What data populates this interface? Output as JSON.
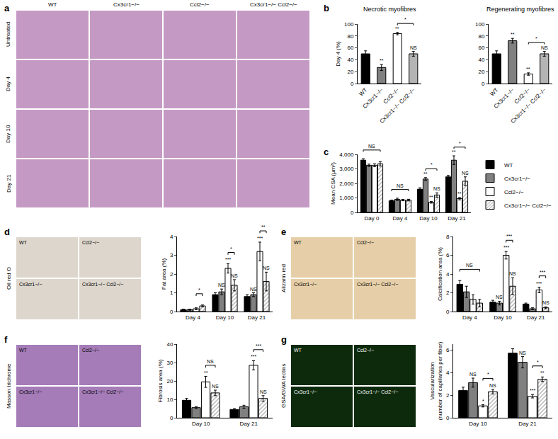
{
  "panel_labels": [
    "a",
    "b",
    "c",
    "d",
    "e",
    "f",
    "g"
  ],
  "histology": [
    {
      "columns": [
        "WT",
        "Cx3cr1−/−",
        "Ccl2−/−",
        "Cx3cr1−/− Ccl2−/−"
      ],
      "rows": [
        "Untreated",
        "Day 4",
        "Day 10",
        "Day 21"
      ],
      "color": "#c49ac4"
    },
    {
      "stain": "Oil red O",
      "cells": [
        "WT",
        "Ccl2−/−",
        "Cx3cr1−/−",
        "Cx3cr1−/− Ccl2−/−"
      ],
      "color": "#ddd6cc"
    },
    {
      "stain": "Alizarin red",
      "cells": [
        "WT",
        "Ccl2−/−",
        "Cx3cr1−/−",
        "Cx3cr1−/− Ccl2−/−"
      ],
      "color": "#e6cfa8"
    },
    {
      "stain": "Masson trichrome",
      "cells": [
        "WT",
        "Ccl2−/−",
        "Cx3cr1−/−",
        "Cx3cr1−/− Ccl2−/−"
      ],
      "color": "#a57cb8"
    },
    {
      "stain": "GSA/GWA lectins",
      "cells": [
        "WT",
        "Ccl2−/−",
        "Cx3cr1−/−",
        "Cx3cr1−/− Ccl2−/−"
      ],
      "color": "#0d2a0d"
    }
  ],
  "chart_data": [
    {
      "type": "bar",
      "title": "Necrotic myofibres",
      "ylabel": "Day 4 (%)",
      "grid": false,
      "categories": [
        "WT",
        "Cx3cr1−/−",
        "Ccl2−/−",
        "Cx3cr1−/− Ccl2−/−"
      ],
      "series": [
        {
          "values": [
            50,
            27,
            84,
            50
          ],
          "errors": [
            5,
            5,
            2,
            4
          ],
          "colors": [
            "#000000",
            "#808080",
            "#ffffff",
            "#b4b4b4"
          ],
          "annotations": [
            null,
            "**",
            "**",
            "NS"
          ]
        }
      ],
      "comparisons": [
        {
          "from": 2,
          "to": 3,
          "label": "*"
        }
      ],
      "ylim": [
        0,
        100
      ],
      "yticks": [
        0,
        20,
        40,
        60,
        80,
        100
      ]
    },
    {
      "type": "bar",
      "title": "Regenerating myofibres",
      "grid": false,
      "categories": [
        "WT",
        "Cx3cr1−/−",
        "Ccl2−/−",
        "Cx3cr1−/− Ccl2−/−"
      ],
      "series": [
        {
          "values": [
            50,
            72,
            16,
            50
          ],
          "errors": [
            5,
            4,
            2,
            4
          ],
          "colors": [
            "#000000",
            "#808080",
            "#ffffff",
            "#b4b4b4"
          ],
          "annotations": [
            null,
            "**",
            "**",
            "NS"
          ]
        }
      ],
      "comparisons": [
        {
          "from": 2,
          "to": 3,
          "label": "*"
        }
      ],
      "ylim": [
        0,
        100
      ],
      "yticks": [
        0,
        20,
        40,
        60,
        80,
        100
      ]
    },
    {
      "type": "bar",
      "ylabel": "Mean CSA (μm²)",
      "grid": false,
      "legend": "right",
      "categories": [
        "Day 0",
        "Day 4",
        "Day 10",
        "Day 21"
      ],
      "series": [
        {
          "name": "WT",
          "color": "#000000",
          "values": [
            3600,
            800,
            1600,
            2450
          ],
          "errors": [
            100,
            50,
            100,
            100
          ]
        },
        {
          "name": "Cx3cr1−/−",
          "color": "#808080",
          "values": [
            3250,
            900,
            2300,
            3600
          ],
          "errors": [
            80,
            80,
            100,
            300
          ],
          "annotations": [
            null,
            null,
            "**",
            "**"
          ]
        },
        {
          "name": "Ccl2−/−",
          "color": "#ffffff",
          "values": [
            3250,
            850,
            700,
            950
          ],
          "errors": [
            100,
            50,
            60,
            80
          ],
          "annotations": [
            null,
            null,
            "**",
            "**"
          ]
        },
        {
          "name": "Cx3cr1−/− Ccl2−/−",
          "color": "#ffffff",
          "marker": "hatch",
          "values": [
            3350,
            850,
            1200,
            2150
          ],
          "errors": [
            150,
            60,
            150,
            300
          ],
          "annotations": [
            null,
            null,
            "NS",
            "NS"
          ]
        }
      ],
      "comparisons": [
        {
          "category": 0,
          "from": 0,
          "to": 3,
          "label": "NS"
        },
        {
          "category": 1,
          "from": 0,
          "to": 3,
          "label": "NS"
        },
        {
          "category": 2,
          "from": 1,
          "to": 3,
          "label": "*"
        },
        {
          "category": 3,
          "from": 1,
          "to": 3,
          "label": "*"
        }
      ],
      "ylim": [
        0,
        4000
      ],
      "yticks": [
        0,
        {
          "value": 1000,
          "label": "1,000"
        },
        {
          "value": 2000,
          "label": "2,000"
        },
        {
          "value": 3000,
          "label": "3,000"
        },
        {
          "value": 4000,
          "label": "4,000"
        }
      ]
    },
    {
      "type": "bar",
      "ylabel": "Fat area (%)",
      "grid": false,
      "categories": [
        "Day 4",
        "Day 10",
        "Day 21"
      ],
      "series": [
        {
          "color": "#000000",
          "values": [
            0.1,
            0.9,
            0.8
          ],
          "errors": [
            0.03,
            0.1,
            0.1
          ]
        },
        {
          "color": "#808080",
          "values": [
            0.1,
            1.05,
            0.9
          ],
          "errors": [
            0.03,
            0.15,
            0.1
          ],
          "annotations": [
            null,
            "NS",
            "NS"
          ]
        },
        {
          "color": "#ffffff",
          "values": [
            0.15,
            2.3,
            3.2
          ],
          "errors": [
            0.05,
            0.25,
            0.5
          ],
          "annotations": [
            null,
            "***",
            "***"
          ]
        },
        {
          "color": "#ffffff",
          "marker": "hatch",
          "values": [
            0.3,
            1.4,
            1.6
          ],
          "errors": [
            0.05,
            0.3,
            0.5
          ],
          "annotations": [
            null,
            "NS",
            "NS"
          ]
        }
      ],
      "comparisons": [
        {
          "category": 0,
          "from": 2,
          "to": 3,
          "label": "*"
        },
        {
          "category": 1,
          "from": 2,
          "to": 3,
          "label": "*"
        },
        {
          "category": 2,
          "from": 2,
          "to": 3,
          "label": "**"
        }
      ],
      "ylim": [
        0,
        4
      ],
      "yticks": [
        0,
        1,
        2,
        3,
        4
      ]
    },
    {
      "type": "bar",
      "ylabel": "Calcification area (%)",
      "grid": false,
      "categories": [
        "Day 4",
        "Day 10",
        "Day 21"
      ],
      "series": [
        {
          "color": "#000000",
          "values": [
            2.9,
            1.0,
            0.8
          ],
          "errors": [
            0.4,
            0.2,
            0.1
          ]
        },
        {
          "color": "#808080",
          "values": [
            2.1,
            0.9,
            0.3
          ],
          "errors": [
            0.6,
            0.2,
            0.1
          ],
          "annotations": [
            null,
            "NS",
            null
          ]
        },
        {
          "color": "#ffffff",
          "values": [
            1.3,
            6.0,
            2.3
          ],
          "errors": [
            0.5,
            0.4,
            0.3
          ],
          "annotations": [
            null,
            "***",
            "***"
          ]
        },
        {
          "color": "#ffffff",
          "marker": "hatch",
          "values": [
            0.9,
            2.7,
            0.4
          ],
          "errors": [
            0.4,
            0.9,
            0.1
          ],
          "annotations": [
            null,
            "NS",
            "NS"
          ]
        }
      ],
      "comparisons": [
        {
          "category": 0,
          "from": 0,
          "to": 3,
          "label": "NS"
        },
        {
          "category": 1,
          "from": 2,
          "to": 3,
          "label": "***"
        },
        {
          "category": 2,
          "from": 2,
          "to": 3,
          "label": "***"
        }
      ],
      "ylim": [
        0,
        8
      ],
      "yticks": [
        0,
        2,
        4,
        6,
        8
      ]
    },
    {
      "type": "bar",
      "ylabel": "Fibrosis area (%)",
      "grid": false,
      "categories": [
        "Day 10",
        "Day 21"
      ],
      "series": [
        {
          "color": "#000000",
          "values": [
            9.5,
            4.5
          ],
          "errors": [
            1,
            0.5
          ]
        },
        {
          "color": "#808080",
          "values": [
            5.5,
            6
          ],
          "errors": [
            0.5,
            0.8
          ]
        },
        {
          "color": "#ffffff",
          "values": [
            19.5,
            28.5
          ],
          "errors": [
            3,
            2.5
          ],
          "annotations": [
            "**",
            "***"
          ]
        },
        {
          "color": "#ffffff",
          "marker": "hatch",
          "values": [
            13.5,
            10.5
          ],
          "errors": [
            1.5,
            1.5
          ],
          "annotations": [
            "NS",
            "NS"
          ]
        }
      ],
      "comparisons": [
        {
          "category": 0,
          "from": 2,
          "to": 3,
          "label": "NS"
        },
        {
          "category": 1,
          "from": 2,
          "to": 3,
          "label": "***"
        }
      ],
      "ylim": [
        0,
        40
      ],
      "yticks": [
        0,
        10,
        20,
        30,
        40
      ]
    },
    {
      "type": "bar",
      "ylabel": "Vascularization\n(number of capillaries per fiber)",
      "grid": false,
      "categories": [
        "Day 10",
        "Day 21"
      ],
      "series": [
        {
          "color": "#000000",
          "values": [
            2.4,
            5.7
          ],
          "errors": [
            0.3,
            0.4
          ]
        },
        {
          "color": "#808080",
          "values": [
            3.1,
            4.9
          ],
          "errors": [
            0.4,
            0.5
          ],
          "annotations": [
            "NS",
            "NS"
          ]
        },
        {
          "color": "#ffffff",
          "values": [
            1.05,
            1.9
          ],
          "errors": [
            0.1,
            0.15
          ],
          "annotations": [
            "*",
            "***"
          ]
        },
        {
          "color": "#ffffff",
          "marker": "hatch",
          "values": [
            2.3,
            3.4
          ],
          "errors": [
            0.2,
            0.2
          ],
          "annotations": [
            "NS",
            "**"
          ]
        }
      ],
      "comparisons": [
        {
          "category": 0,
          "from": 2,
          "to": 3,
          "label": "*"
        },
        {
          "category": 1,
          "from": 2,
          "to": 3,
          "label": "*"
        }
      ],
      "ylim": [
        0,
        6.5
      ],
      "yticks": [
        0,
        2,
        4,
        6
      ]
    }
  ]
}
